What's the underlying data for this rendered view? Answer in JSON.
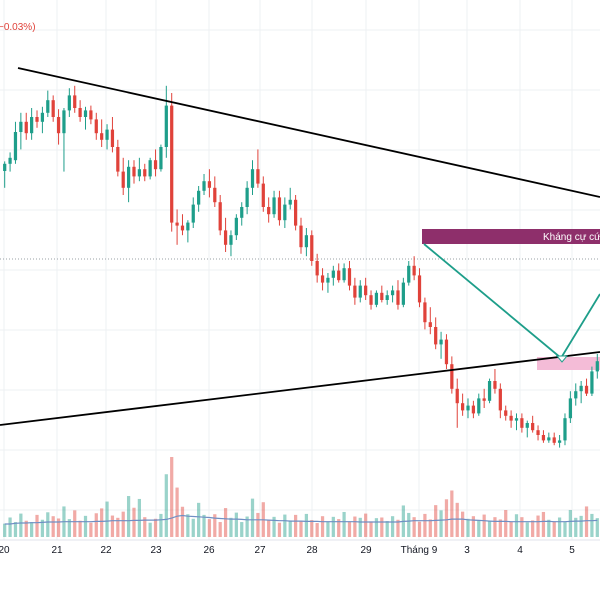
{
  "header": {
    "change_text": "−0.03%)"
  },
  "colors": {
    "up": "#1e9e8a",
    "down": "#e0423a",
    "trendline": "#000000",
    "pattern_line": "#1e9e8a",
    "resistance_zone": "#8e2f6b",
    "support_zone": "#f4bcd7",
    "volume_ma": "#6f8fc4",
    "grid": "#eef0f3",
    "reference_line": "#9aa0a6"
  },
  "annotations": {
    "resistance_label": "Kháng cự cứ"
  },
  "chart_data": {
    "type": "candlestick",
    "x_axis": {
      "tick_labels": [
        "20",
        "21",
        "22",
        "23",
        "26",
        "27",
        "28",
        "29",
        "Tháng 9",
        "3",
        "4",
        "5"
      ]
    },
    "price_range": [
      0,
      100
    ],
    "grid": true,
    "candles": [
      {
        "o": 71.5,
        "h": 73.1,
        "l": 68.7,
        "c": 72.7
      },
      {
        "o": 72.7,
        "h": 74.6,
        "l": 71.4,
        "c": 73.7
      },
      {
        "o": 73.3,
        "h": 79.7,
        "l": 72.7,
        "c": 78.0
      },
      {
        "o": 78.0,
        "h": 81.2,
        "l": 75.1,
        "c": 79.7
      },
      {
        "o": 79.7,
        "h": 81.2,
        "l": 76.7,
        "c": 77.8
      },
      {
        "o": 77.8,
        "h": 82.0,
        "l": 76.7,
        "c": 80.5
      },
      {
        "o": 80.5,
        "h": 81.6,
        "l": 78.7,
        "c": 79.7
      },
      {
        "o": 79.7,
        "h": 82.2,
        "l": 77.8,
        "c": 81.2
      },
      {
        "o": 81.2,
        "h": 84.9,
        "l": 80.5,
        "c": 83.3
      },
      {
        "o": 83.3,
        "h": 84.1,
        "l": 79.7,
        "c": 80.5
      },
      {
        "o": 80.5,
        "h": 81.8,
        "l": 75.9,
        "c": 77.8
      },
      {
        "o": 77.8,
        "h": 82.0,
        "l": 71.4,
        "c": 81.6
      },
      {
        "o": 81.6,
        "h": 85.3,
        "l": 80.5,
        "c": 84.1
      },
      {
        "o": 84.1,
        "h": 85.7,
        "l": 81.2,
        "c": 82.0
      },
      {
        "o": 82.0,
        "h": 83.3,
        "l": 79.7,
        "c": 80.5
      },
      {
        "o": 80.5,
        "h": 82.2,
        "l": 78.4,
        "c": 81.6
      },
      {
        "o": 81.6,
        "h": 82.4,
        "l": 79.3,
        "c": 80.1
      },
      {
        "o": 80.1,
        "h": 81.2,
        "l": 76.7,
        "c": 77.8
      },
      {
        "o": 77.8,
        "h": 80.1,
        "l": 75.5,
        "c": 76.7
      },
      {
        "o": 76.7,
        "h": 79.3,
        "l": 75.1,
        "c": 78.4
      },
      {
        "o": 78.4,
        "h": 80.5,
        "l": 74.6,
        "c": 75.5
      },
      {
        "o": 75.5,
        "h": 76.7,
        "l": 70.6,
        "c": 71.4
      },
      {
        "o": 71.4,
        "h": 73.7,
        "l": 67.5,
        "c": 68.7
      },
      {
        "o": 68.7,
        "h": 73.3,
        "l": 66.3,
        "c": 72.2
      },
      {
        "o": 72.2,
        "h": 73.3,
        "l": 69.4,
        "c": 70.6
      },
      {
        "o": 70.6,
        "h": 73.7,
        "l": 69.8,
        "c": 71.8
      },
      {
        "o": 71.8,
        "h": 72.7,
        "l": 69.8,
        "c": 70.6
      },
      {
        "o": 70.6,
        "h": 73.7,
        "l": 70.1,
        "c": 73.3
      },
      {
        "o": 73.3,
        "h": 75.1,
        "l": 70.6,
        "c": 71.8
      },
      {
        "o": 71.8,
        "h": 75.9,
        "l": 71.4,
        "c": 75.5
      },
      {
        "o": 75.5,
        "h": 85.7,
        "l": 73.7,
        "c": 82.4
      },
      {
        "o": 82.4,
        "h": 84.5,
        "l": 61.4,
        "c": 62.9
      },
      {
        "o": 62.9,
        "h": 65.1,
        "l": 59.2,
        "c": 62.4
      },
      {
        "o": 62.4,
        "h": 64.3,
        "l": 60.8,
        "c": 61.6
      },
      {
        "o": 61.6,
        "h": 63.3,
        "l": 59.6,
        "c": 62.9
      },
      {
        "o": 62.9,
        "h": 67.1,
        "l": 62.0,
        "c": 65.9
      },
      {
        "o": 65.9,
        "h": 69.0,
        "l": 64.7,
        "c": 68.2
      },
      {
        "o": 68.2,
        "h": 71.0,
        "l": 67.5,
        "c": 69.8
      },
      {
        "o": 69.8,
        "h": 71.8,
        "l": 67.1,
        "c": 68.7
      },
      {
        "o": 68.7,
        "h": 70.6,
        "l": 65.5,
        "c": 66.3
      },
      {
        "o": 66.3,
        "h": 67.5,
        "l": 60.8,
        "c": 61.6
      },
      {
        "o": 61.6,
        "h": 63.7,
        "l": 58.0,
        "c": 59.2
      },
      {
        "o": 59.2,
        "h": 61.6,
        "l": 57.3,
        "c": 60.8
      },
      {
        "o": 60.8,
        "h": 64.3,
        "l": 60.0,
        "c": 63.7
      },
      {
        "o": 63.7,
        "h": 66.3,
        "l": 62.4,
        "c": 65.5
      },
      {
        "o": 65.5,
        "h": 69.8,
        "l": 64.3,
        "c": 68.7
      },
      {
        "o": 68.7,
        "h": 73.3,
        "l": 67.5,
        "c": 71.8
      },
      {
        "o": 71.8,
        "h": 75.1,
        "l": 68.7,
        "c": 69.4
      },
      {
        "o": 69.4,
        "h": 70.6,
        "l": 64.7,
        "c": 65.5
      },
      {
        "o": 65.5,
        "h": 67.1,
        "l": 62.9,
        "c": 64.3
      },
      {
        "o": 64.3,
        "h": 68.2,
        "l": 63.7,
        "c": 67.1
      },
      {
        "o": 67.1,
        "h": 68.2,
        "l": 62.4,
        "c": 63.3
      },
      {
        "o": 63.3,
        "h": 67.1,
        "l": 62.0,
        "c": 65.9
      },
      {
        "o": 65.9,
        "h": 68.7,
        "l": 65.1,
        "c": 66.7
      },
      {
        "o": 66.7,
        "h": 67.5,
        "l": 61.6,
        "c": 62.4
      },
      {
        "o": 62.4,
        "h": 63.7,
        "l": 57.7,
        "c": 58.8
      },
      {
        "o": 58.8,
        "h": 62.0,
        "l": 57.3,
        "c": 60.8
      },
      {
        "o": 60.8,
        "h": 61.6,
        "l": 55.7,
        "c": 56.5
      },
      {
        "o": 56.5,
        "h": 57.7,
        "l": 52.9,
        "c": 54.1
      },
      {
        "o": 54.1,
        "h": 55.3,
        "l": 51.6,
        "c": 52.9
      },
      {
        "o": 52.9,
        "h": 54.5,
        "l": 51.2,
        "c": 53.7
      },
      {
        "o": 53.7,
        "h": 55.7,
        "l": 52.4,
        "c": 54.9
      },
      {
        "o": 54.9,
        "h": 56.1,
        "l": 52.9,
        "c": 53.3
      },
      {
        "o": 53.3,
        "h": 56.1,
        "l": 52.9,
        "c": 55.3
      },
      {
        "o": 55.3,
        "h": 56.5,
        "l": 51.6,
        "c": 52.4
      },
      {
        "o": 52.4,
        "h": 53.7,
        "l": 49.2,
        "c": 50.4
      },
      {
        "o": 50.4,
        "h": 53.3,
        "l": 49.6,
        "c": 52.4
      },
      {
        "o": 52.4,
        "h": 53.7,
        "l": 50.0,
        "c": 50.8
      },
      {
        "o": 50.8,
        "h": 51.6,
        "l": 48.4,
        "c": 49.2
      },
      {
        "o": 49.2,
        "h": 51.6,
        "l": 48.8,
        "c": 51.2
      },
      {
        "o": 51.2,
        "h": 52.4,
        "l": 49.6,
        "c": 50.0
      },
      {
        "o": 50.0,
        "h": 51.6,
        "l": 49.2,
        "c": 50.8
      },
      {
        "o": 50.8,
        "h": 52.4,
        "l": 49.6,
        "c": 51.6
      },
      {
        "o": 51.6,
        "h": 53.3,
        "l": 48.4,
        "c": 49.2
      },
      {
        "o": 49.2,
        "h": 53.7,
        "l": 48.8,
        "c": 52.9
      },
      {
        "o": 52.9,
        "h": 56.5,
        "l": 52.4,
        "c": 55.7
      },
      {
        "o": 55.7,
        "h": 57.3,
        "l": 53.3,
        "c": 54.1
      },
      {
        "o": 54.1,
        "h": 55.3,
        "l": 48.8,
        "c": 49.6
      },
      {
        "o": 49.6,
        "h": 50.4,
        "l": 45.1,
        "c": 46.3
      },
      {
        "o": 46.3,
        "h": 48.8,
        "l": 44.3,
        "c": 45.5
      },
      {
        "o": 45.5,
        "h": 47.1,
        "l": 41.8,
        "c": 42.6
      },
      {
        "o": 42.6,
        "h": 44.7,
        "l": 40.2,
        "c": 43.4
      },
      {
        "o": 43.4,
        "h": 44.3,
        "l": 38.5,
        "c": 39.3
      },
      {
        "o": 39.3,
        "h": 40.6,
        "l": 34.4,
        "c": 35.2
      },
      {
        "o": 35.2,
        "h": 36.9,
        "l": 28.7,
        "c": 32.8
      },
      {
        "o": 32.8,
        "h": 34.4,
        "l": 30.7,
        "c": 31.6
      },
      {
        "o": 31.6,
        "h": 33.6,
        "l": 30.3,
        "c": 32.4
      },
      {
        "o": 32.4,
        "h": 33.2,
        "l": 30.3,
        "c": 31.1
      },
      {
        "o": 31.1,
        "h": 34.4,
        "l": 30.7,
        "c": 33.6
      },
      {
        "o": 33.6,
        "h": 35.2,
        "l": 32.0,
        "c": 33.2
      },
      {
        "o": 33.2,
        "h": 36.9,
        "l": 32.8,
        "c": 36.5
      },
      {
        "o": 36.5,
        "h": 38.5,
        "l": 34.4,
        "c": 35.2
      },
      {
        "o": 35.2,
        "h": 36.1,
        "l": 30.3,
        "c": 31.6
      },
      {
        "o": 31.6,
        "h": 32.4,
        "l": 29.9,
        "c": 30.7
      },
      {
        "o": 30.7,
        "h": 31.6,
        "l": 28.7,
        "c": 29.9
      },
      {
        "o": 29.9,
        "h": 31.1,
        "l": 28.3,
        "c": 30.3
      },
      {
        "o": 30.3,
        "h": 31.1,
        "l": 27.9,
        "c": 28.7
      },
      {
        "o": 28.7,
        "h": 29.9,
        "l": 27.1,
        "c": 29.5
      },
      {
        "o": 29.5,
        "h": 30.7,
        "l": 27.9,
        "c": 28.3
      },
      {
        "o": 28.3,
        "h": 29.1,
        "l": 26.6,
        "c": 27.5
      },
      {
        "o": 27.5,
        "h": 28.3,
        "l": 26.2,
        "c": 26.6
      },
      {
        "o": 26.6,
        "h": 27.9,
        "l": 26.2,
        "c": 27.1
      },
      {
        "o": 27.1,
        "h": 27.9,
        "l": 25.8,
        "c": 26.2
      },
      {
        "o": 26.2,
        "h": 27.5,
        "l": 25.4,
        "c": 26.6
      },
      {
        "o": 26.6,
        "h": 31.1,
        "l": 25.8,
        "c": 30.3
      },
      {
        "o": 30.3,
        "h": 34.8,
        "l": 29.5,
        "c": 33.6
      },
      {
        "o": 33.6,
        "h": 36.1,
        "l": 32.4,
        "c": 34.8
      },
      {
        "o": 34.8,
        "h": 36.5,
        "l": 32.8,
        "c": 35.7
      },
      {
        "o": 35.7,
        "h": 36.9,
        "l": 34.0,
        "c": 34.4
      },
      {
        "o": 34.4,
        "h": 38.9,
        "l": 34.0,
        "c": 38.1
      },
      {
        "o": 38.1,
        "h": 41.0,
        "l": 36.9,
        "c": 39.8
      }
    ],
    "volume": [
      4.1,
      6.0,
      4.6,
      7.2,
      5.0,
      4.6,
      6.8,
      5.3,
      7.6,
      6.4,
      5.7,
      9.4,
      5.5,
      8.2,
      5.0,
      6.5,
      4.4,
      7.3,
      8.8,
      10.9,
      6.6,
      5.9,
      7.8,
      12.6,
      9.0,
      11.7,
      6.1,
      4.4,
      5.6,
      7.1,
      19.3,
      24.6,
      15.2,
      9.3,
      7.0,
      5.6,
      10.5,
      6.8,
      5.5,
      7.0,
      4.6,
      8.9,
      5.9,
      7.5,
      4.6,
      6.3,
      11.8,
      7.4,
      10.7,
      5.3,
      6.2,
      4.4,
      6.9,
      5.1,
      6.8,
      4.9,
      7.1,
      5.2,
      4.3,
      6.4,
      4.7,
      6.2,
      5.5,
      7.7,
      4.6,
      6.3,
      5.9,
      7.2,
      4.8,
      5.8,
      6.0,
      4.9,
      6.4,
      5.3,
      9.7,
      7.4,
      6.1,
      4.7,
      7.1,
      5.4,
      9.8,
      8.2,
      11.6,
      14.3,
      10.5,
      7.8,
      5.6,
      6.4,
      5.0,
      6.9,
      4.9,
      6.1,
      5.4,
      8.3,
      4.7,
      7.0,
      6.1,
      4.5,
      5.1,
      6.6,
      7.7,
      5.3,
      4.8,
      6.0,
      4.6,
      8.3,
      5.9,
      6.5,
      9.4,
      7.1,
      5.8
    ],
    "volume_ma": [
      4.0,
      4.0,
      4.2,
      4.3,
      4.3,
      4.4,
      4.4,
      4.5,
      4.6,
      4.6,
      4.6,
      4.7,
      4.7,
      4.7,
      4.7,
      4.7,
      4.7,
      4.8,
      4.8,
      4.9,
      5.0,
      5.0,
      5.0,
      5.0,
      5.1,
      5.1,
      5.2,
      5.2,
      5.2,
      5.3,
      5.4,
      5.8,
      6.4,
      6.6,
      6.4,
      6.3,
      6.2,
      6.1,
      6.0,
      5.8,
      5.7,
      5.6,
      5.5,
      5.5,
      5.4,
      5.3,
      5.3,
      5.3,
      5.3,
      5.2,
      5.1,
      5.0,
      5.0,
      4.9,
      4.9,
      4.9,
      4.8,
      4.8,
      4.8,
      4.7,
      4.7,
      4.7,
      4.7,
      4.7,
      4.7,
      4.7,
      4.6,
      4.6,
      4.6,
      4.6,
      4.6,
      4.6,
      4.6,
      4.6,
      4.8,
      4.9,
      5.0,
      5.0,
      5.0,
      5.0,
      5.1,
      5.2,
      5.3,
      5.5,
      5.5,
      5.5,
      5.3,
      5.2,
      5.1,
      5.0,
      4.9,
      4.8,
      4.8,
      4.8,
      4.7,
      4.7,
      4.7,
      4.7,
      4.7,
      4.7,
      4.8,
      4.8,
      4.7,
      4.7,
      4.7,
      4.8,
      4.9,
      4.9,
      5.0,
      5.0,
      5.1
    ]
  }
}
